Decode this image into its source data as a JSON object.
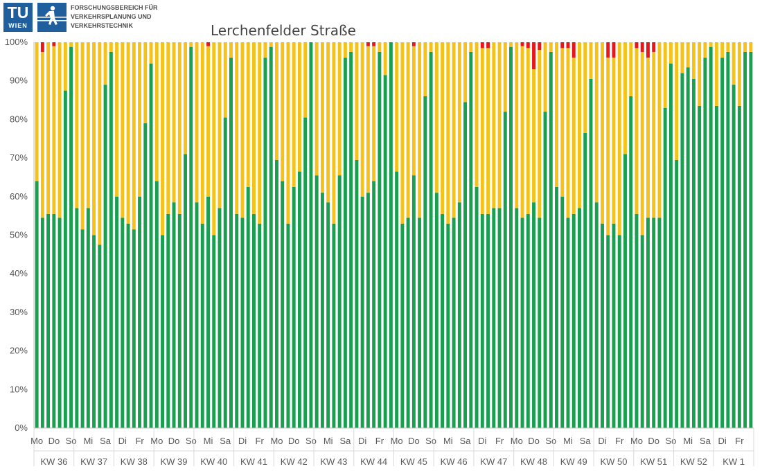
{
  "header": {
    "tu_letters": "TU",
    "tu_sub": "WIEN",
    "institute_lines": [
      "FORSCHUNGSBEREICH FÜR",
      "VERKEHRSPLANUNG UND",
      "VERKEHRSTECHNIK"
    ],
    "title": "Lerchenfelder Straße"
  },
  "chart_data": {
    "type": "bar",
    "stacked": true,
    "percent": true,
    "title": "Lerchenfelder Straße",
    "ylim": [
      0,
      100
    ],
    "yticks": [
      0,
      10,
      20,
      30,
      40,
      50,
      60,
      70,
      80,
      90,
      100
    ],
    "ytick_labels": [
      "0%",
      "10%",
      "20%",
      "30%",
      "40%",
      "50%",
      "60%",
      "70%",
      "80%",
      "90%",
      "100%"
    ],
    "grid": false,
    "legend": "none",
    "colors": {
      "green": "#1a9e50",
      "yellow": "#f5c21b",
      "red": "#e8161b"
    },
    "weeks": [
      "KW 36",
      "KW 37",
      "KW 38",
      "KW 39",
      "KW 40",
      "KW 41",
      "KW 42",
      "KW 43",
      "KW 44",
      "KW 45",
      "KW 46",
      "KW 47",
      "KW 48",
      "KW 49",
      "KW 50",
      "KW 51",
      "KW 52",
      "KW 1"
    ],
    "week_day_labels": [
      [
        "Mo",
        "Do",
        "So"
      ],
      [
        "Mi",
        "Sa"
      ],
      [
        "Di",
        "Fr"
      ],
      [
        "Mo",
        "Do",
        "So"
      ],
      [
        "Mi",
        "Sa"
      ],
      [
        "Di",
        "Fr"
      ],
      [
        "Mo",
        "Do",
        "So"
      ],
      [
        "Mi",
        "Sa"
      ],
      [
        "Di",
        "Fr"
      ],
      [
        "Mo",
        "Do",
        "So"
      ],
      [
        "Mi",
        "Sa"
      ],
      [
        "Di",
        "Fr"
      ],
      [
        "Mo",
        "Do",
        "So"
      ],
      [
        "Mi",
        "Sa"
      ],
      [
        "Di",
        "Fr"
      ],
      [
        "Mo",
        "Do",
        "So"
      ],
      [
        "Mi",
        "Sa"
      ],
      [
        "Di",
        "Fr"
      ]
    ],
    "series": [
      {
        "color": "green",
        "values": [
          64,
          54.5,
          55.5,
          55.5,
          54.5,
          87.5,
          98.8,
          57,
          51.5,
          57,
          50,
          47.5,
          89,
          97.5,
          60,
          54.5,
          53,
          51.5,
          60,
          79,
          94.5,
          64,
          50,
          55.5,
          58.5,
          55.5,
          71,
          98.8,
          58.5,
          53,
          60,
          50,
          57,
          80.5,
          96,
          55.5,
          54.5,
          62.5,
          55.5,
          53,
          96,
          98.8,
          69.5,
          64,
          53,
          62.5,
          66.5,
          80.5,
          100,
          65.5,
          61,
          58.5,
          53,
          65.5,
          96,
          97.5,
          69.5,
          60,
          61,
          64,
          97.5,
          91.5,
          100,
          66.5,
          53,
          54.5,
          65.5,
          54.5,
          86,
          97.5,
          61,
          55.5,
          53,
          54.5,
          58.5,
          84.5,
          97.5,
          62.5,
          55.5,
          55.5,
          57,
          57,
          82,
          98.8,
          57,
          54.5,
          55.5,
          58.5,
          54.5,
          82,
          97.5,
          62.5,
          60,
          54.5,
          55.5,
          57,
          76.5,
          90.5,
          58.5,
          53,
          50,
          53,
          50,
          71,
          86,
          55.5,
          50,
          54.5,
          54.5,
          54.5,
          83,
          94.5,
          69.5,
          92,
          93.5,
          90.5,
          83.5,
          96,
          98.8,
          83.5,
          96,
          97.5,
          89,
          83.5,
          97.5,
          97.5
        ]
      },
      {
        "color": "yellow",
        "values": [
          36,
          43,
          44.5,
          43.5,
          45.5,
          12.5,
          1.2,
          43,
          48.5,
          43,
          50,
          52.5,
          11,
          2.5,
          40,
          45.5,
          47,
          48.5,
          40,
          21,
          5.5,
          36,
          50,
          44.5,
          41.5,
          44.5,
          29,
          1.2,
          41.5,
          47,
          39,
          50,
          43,
          19.5,
          4,
          44.5,
          45.5,
          37.5,
          44.5,
          47,
          4,
          1.2,
          30.5,
          36,
          47,
          37.5,
          33.5,
          19.5,
          0,
          34.5,
          39,
          41.5,
          47,
          34.5,
          4,
          2.5,
          30.5,
          40,
          38,
          35,
          2.5,
          8.5,
          0,
          33.5,
          47,
          45.5,
          33.5,
          45.5,
          14,
          2.5,
          39,
          44.5,
          47,
          45.5,
          41.5,
          15.5,
          2.5,
          37.5,
          43,
          43,
          43,
          43,
          18,
          1.2,
          43,
          44.5,
          43,
          34.5,
          43.5,
          18,
          2.5,
          37.5,
          38.5,
          44,
          40.5,
          43,
          23.5,
          9.5,
          41.5,
          47,
          46,
          43,
          50,
          29,
          14,
          43,
          47.5,
          41.5,
          43,
          45.5,
          17,
          5.5,
          30.5,
          8,
          6.5,
          9.5,
          16.5,
          4,
          1.2,
          16.5,
          4,
          2.5,
          11,
          16.5,
          2.5,
          2.5
        ]
      },
      {
        "color": "red",
        "values": [
          0,
          2.5,
          0,
          1,
          0,
          0,
          0,
          0,
          0,
          0,
          0,
          0,
          0,
          0,
          0,
          0,
          0,
          0,
          0,
          0,
          0,
          0,
          0,
          0,
          0,
          0,
          0,
          0,
          0,
          0,
          1,
          0,
          0,
          0,
          0,
          0,
          0,
          0,
          0,
          0,
          0,
          0,
          0,
          0,
          0,
          0,
          0,
          0,
          0,
          0,
          0,
          0,
          0,
          0,
          0,
          0,
          0,
          0,
          1,
          1,
          0,
          0,
          0,
          0,
          0,
          0,
          1,
          0,
          0,
          0,
          0,
          0,
          0,
          0,
          0,
          0,
          0,
          0,
          1.5,
          1.5,
          0,
          0,
          0,
          0,
          0,
          1,
          1.5,
          7,
          2,
          0,
          0,
          0,
          1.5,
          1.5,
          4,
          0,
          0,
          0,
          0,
          0,
          4,
          4,
          0,
          0,
          0,
          1.5,
          2.5,
          4,
          2.5,
          0,
          0,
          0,
          0,
          0,
          0,
          0,
          0,
          0,
          0,
          0,
          0,
          0,
          0,
          0,
          0,
          0
        ]
      }
    ]
  }
}
